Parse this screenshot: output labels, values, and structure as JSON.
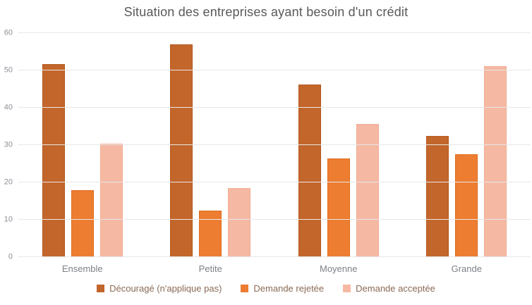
{
  "chart_data": {
    "type": "bar",
    "title": "Situation des entreprises ayant besoin d'un crédit",
    "categories": [
      "Ensemble",
      "Petite",
      "Moyenne",
      "Grande"
    ],
    "series": [
      {
        "name": "Découragé (n'applique pas)",
        "color": "#C2662B",
        "border_color": "#B4581E",
        "values": [
          51.7,
          57.0,
          46.3,
          32.5
        ]
      },
      {
        "name": "Demande rejetée",
        "color": "#ED7D31",
        "border_color": "#DE6B1B",
        "values": [
          18.0,
          12.5,
          26.5,
          27.5
        ]
      },
      {
        "name": "Demande acceptée",
        "color": "#F5B8A2",
        "border_color": "#F1AC92",
        "values": [
          30.4,
          18.5,
          35.6,
          51.2
        ]
      }
    ],
    "xlabel": "",
    "ylabel": "",
    "ylim": [
      0,
      60
    ],
    "yticks": [
      0,
      10,
      20,
      30,
      40,
      50,
      60
    ],
    "grid": true,
    "legend_position": "bottom"
  },
  "colors": {
    "background": "#FFFFFF",
    "title_text": "#595959",
    "axis_tick_text": "#8A8F96",
    "category_text": "#7C8187",
    "legend_text": "#8A6A55",
    "gridline": "#E7E7E7"
  }
}
